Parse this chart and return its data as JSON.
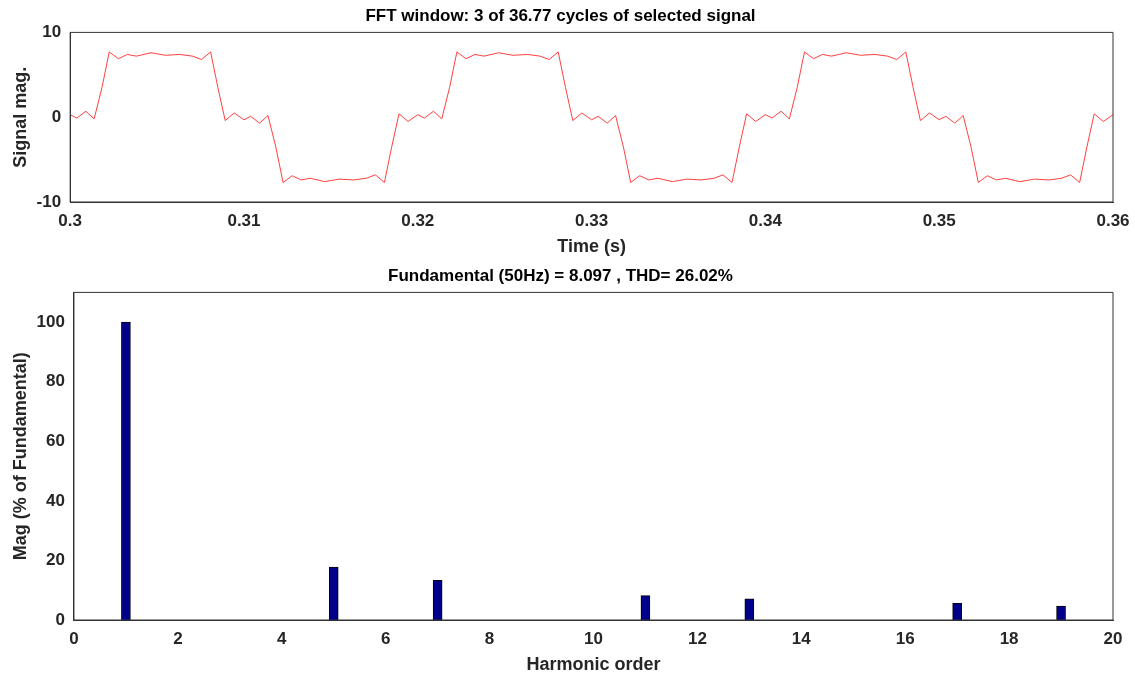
{
  "chart_data": [
    {
      "type": "line",
      "title": "FFT window: 3 of 36.77 cycles of selected signal",
      "xlabel": "Time (s)",
      "ylabel": "Signal mag.",
      "color": "#ff4040",
      "x": [
        0.3,
        0.30038,
        0.3009,
        0.30138,
        0.30183,
        0.30225,
        0.30277,
        0.30329,
        0.30381,
        0.30465,
        0.30548,
        0.30631,
        0.30704,
        0.30756,
        0.30808,
        0.3085,
        0.30892,
        0.30944,
        0.31,
        0.31038,
        0.3109,
        0.31138,
        0.31183,
        0.31225,
        0.31277,
        0.31329,
        0.31381,
        0.31465,
        0.31548,
        0.31631,
        0.31704,
        0.31756,
        0.31808,
        0.3185,
        0.31892,
        0.31944,
        0.32,
        0.32038,
        0.3209,
        0.32138,
        0.32183,
        0.32225,
        0.32277,
        0.32329,
        0.32381,
        0.32465,
        0.32548,
        0.32631,
        0.32704,
        0.32756,
        0.32808,
        0.3285,
        0.32892,
        0.32944,
        0.33,
        0.33038,
        0.3309,
        0.33138,
        0.33183,
        0.33225,
        0.33277,
        0.33329,
        0.33381,
        0.33465,
        0.33548,
        0.33631,
        0.33704,
        0.33756,
        0.33808,
        0.3385,
        0.33892,
        0.33944,
        0.34,
        0.34038,
        0.3409,
        0.34138,
        0.34183,
        0.34225,
        0.34277,
        0.34329,
        0.34381,
        0.34465,
        0.34548,
        0.34631,
        0.34704,
        0.34756,
        0.34808,
        0.3485,
        0.34892,
        0.34944,
        0.35,
        0.35038,
        0.3509,
        0.35138,
        0.35183,
        0.35225,
        0.35277,
        0.35329,
        0.35381,
        0.35465,
        0.35548,
        0.35631,
        0.35704,
        0.35756,
        0.35808,
        0.3585,
        0.35892,
        0.35944,
        0.36
      ],
      "values": [
        0.3,
        -0.1,
        0.7,
        -0.2,
        3.5,
        7.7,
        6.9,
        7.4,
        7.2,
        7.6,
        7.3,
        7.4,
        7.2,
        6.8,
        7.7,
        3.5,
        -0.4,
        0.5,
        -0.3,
        0.1,
        -0.7,
        0.2,
        -3.5,
        -7.7,
        -6.9,
        -7.4,
        -7.2,
        -7.6,
        -7.3,
        -7.4,
        -7.2,
        -6.8,
        -7.7,
        -3.5,
        0.4,
        -0.5,
        0.3,
        -0.1,
        0.7,
        -0.2,
        3.5,
        7.7,
        6.9,
        7.4,
        7.2,
        7.6,
        7.3,
        7.4,
        7.2,
        6.8,
        7.7,
        3.5,
        -0.4,
        0.5,
        -0.3,
        0.1,
        -0.7,
        0.2,
        -3.5,
        -7.7,
        -6.9,
        -7.4,
        -7.2,
        -7.6,
        -7.3,
        -7.4,
        -7.2,
        -6.8,
        -7.7,
        -3.5,
        0.4,
        -0.5,
        0.3,
        -0.1,
        0.7,
        -0.2,
        3.5,
        7.7,
        6.9,
        7.4,
        7.2,
        7.6,
        7.3,
        7.4,
        7.2,
        6.8,
        7.7,
        3.5,
        -0.4,
        0.5,
        -0.3,
        0.1,
        -0.7,
        0.2,
        -3.5,
        -7.7,
        -6.9,
        -7.4,
        -7.2,
        -7.6,
        -7.3,
        -7.4,
        -7.2,
        -6.8,
        -7.7,
        -3.5,
        0.4,
        -0.5,
        0.3
      ],
      "xlim": [
        0.3,
        0.36
      ],
      "xticks": [
        0.3,
        0.31,
        0.32,
        0.33,
        0.34,
        0.35,
        0.36
      ],
      "ylim": [
        -10,
        10
      ],
      "yticks": [
        -10,
        0,
        10
      ]
    },
    {
      "type": "bar",
      "title": "Fundamental (50Hz) = 8.097 , THD= 26.02%",
      "xlabel": "Harmonic order",
      "ylabel": "Mag (% of Fundamental)",
      "color": "#00008b",
      "x": [
        0,
        0.333,
        0.667,
        1,
        1.333,
        1.667,
        2,
        2.333,
        2.667,
        3,
        3.333,
        3.667,
        4,
        4.333,
        4.667,
        5,
        5.333,
        5.667,
        6,
        6.333,
        6.667,
        7,
        7.333,
        7.667,
        8,
        8.333,
        8.667,
        9,
        9.333,
        9.667,
        10,
        10.333,
        10.667,
        11,
        11.333,
        11.667,
        12,
        12.333,
        12.667,
        13,
        13.333,
        13.667,
        14,
        14.333,
        14.667,
        15,
        15.333,
        15.667,
        16,
        16.333,
        16.667,
        17,
        17.333,
        17.667,
        18,
        18.333,
        18.667,
        19,
        19.333,
        19.667,
        20
      ],
      "values": [
        0,
        0,
        0,
        100,
        0,
        0,
        0,
        0,
        0,
        0,
        0,
        0,
        0,
        0,
        0,
        17.8,
        0,
        0,
        0,
        0,
        0,
        13.3,
        0,
        0,
        0,
        0,
        0,
        0,
        0,
        0,
        0,
        0,
        0,
        8.2,
        0,
        0,
        0,
        0,
        0,
        7.1,
        0,
        0,
        0,
        0,
        0,
        0,
        0,
        0,
        0,
        0,
        0,
        5.6,
        0,
        0,
        0,
        0,
        0,
        4.7,
        0,
        0,
        0
      ],
      "xlim": [
        0,
        20
      ],
      "xticks": [
        0,
        2,
        4,
        6,
        8,
        10,
        12,
        14,
        16,
        18,
        20
      ],
      "ylim": [
        0,
        110
      ],
      "yticks": [
        0,
        20,
        40,
        60,
        80,
        100
      ]
    }
  ]
}
